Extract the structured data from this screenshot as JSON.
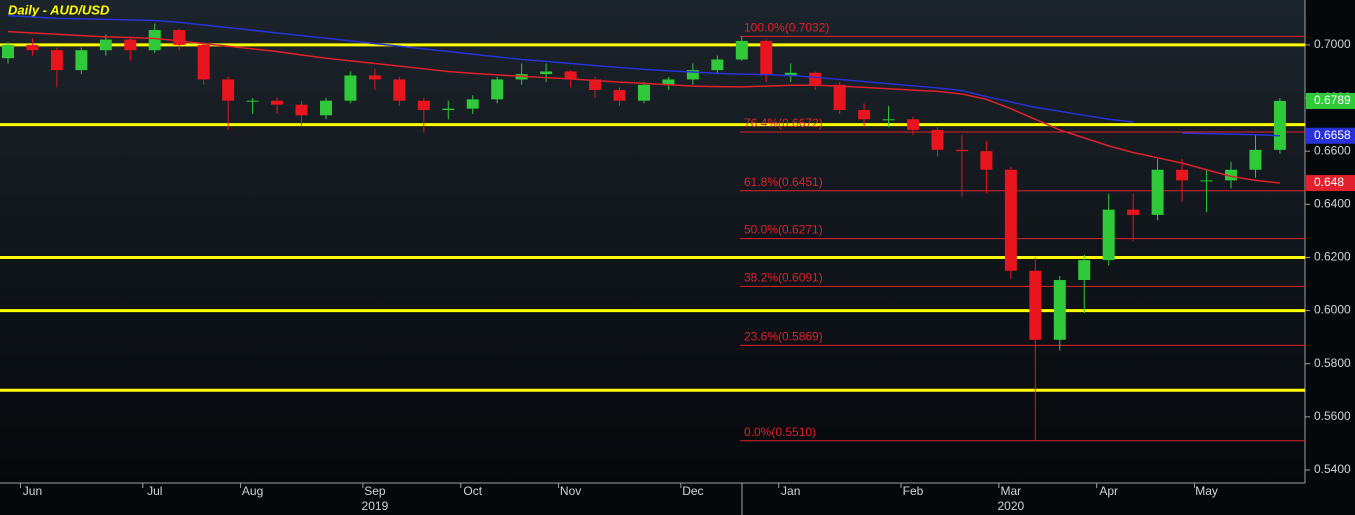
{
  "chart_data": {
    "type": "candlestick",
    "title": "Daily - AUD/USD",
    "categories": [
      null,
      "Jun",
      null,
      null,
      null,
      null,
      "Jul",
      null,
      null,
      null,
      "Aug",
      null,
      null,
      null,
      null,
      "Sep",
      null,
      null,
      null,
      "Oct",
      null,
      null,
      null,
      "Nov",
      null,
      null,
      null,
      null,
      "Dec",
      null,
      null,
      null,
      "Jan",
      null,
      null,
      null,
      null,
      "Feb",
      null,
      null,
      null,
      "Mar",
      null,
      null,
      null,
      "Apr",
      null,
      null,
      null,
      "May",
      null,
      null,
      null
    ],
    "years": [
      {
        "label": "2019",
        "category": 15
      },
      {
        "label": "2020",
        "category": 41
      }
    ],
    "open": [
      0.695,
      0.7,
      0.698,
      0.6905,
      0.698,
      0.702,
      0.698,
      0.7056,
      0.7,
      0.687,
      0.679,
      0.679,
      0.6775,
      0.6735,
      0.679,
      0.6885,
      0.687,
      0.679,
      0.6755,
      0.676,
      0.6795,
      0.687,
      0.689,
      0.69,
      0.687,
      0.683,
      0.679,
      0.685,
      0.687,
      0.6905,
      0.6945,
      0.7015,
      0.6885,
      0.6895,
      0.685,
      0.6755,
      0.672,
      0.672,
      0.668,
      0.6605,
      0.66,
      0.653,
      0.615,
      0.589,
      0.6115,
      0.619,
      0.638,
      0.636,
      0.653,
      0.649,
      0.649,
      0.653,
      0.6605
    ],
    "high": [
      0.701,
      0.7025,
      0.699,
      0.699,
      0.704,
      0.703,
      0.708,
      0.706,
      0.701,
      0.688,
      0.68,
      0.68,
      0.679,
      0.68,
      0.69,
      0.691,
      0.688,
      0.68,
      0.679,
      0.681,
      0.688,
      0.693,
      0.693,
      0.6905,
      0.688,
      0.684,
      0.686,
      0.688,
      0.693,
      0.696,
      0.7032,
      0.702,
      0.693,
      0.69,
      0.686,
      0.678,
      0.677,
      0.673,
      0.669,
      0.666,
      0.664,
      0.654,
      0.62,
      0.613,
      0.621,
      0.644,
      0.644,
      0.657,
      0.657,
      0.653,
      0.656,
      0.666,
      0.68
    ],
    "low": [
      0.693,
      0.696,
      0.684,
      0.689,
      0.696,
      0.694,
      0.697,
      0.698,
      0.685,
      0.668,
      0.674,
      0.674,
      0.669,
      0.672,
      0.678,
      0.683,
      0.677,
      0.667,
      0.672,
      0.674,
      0.678,
      0.685,
      0.686,
      0.684,
      0.68,
      0.677,
      0.678,
      0.683,
      0.685,
      0.689,
      0.694,
      0.686,
      0.686,
      0.683,
      0.674,
      0.669,
      0.669,
      0.666,
      0.658,
      0.643,
      0.644,
      0.612,
      0.551,
      0.585,
      0.599,
      0.617,
      0.626,
      0.634,
      0.641,
      0.637,
      0.646,
      0.65,
      0.659
    ],
    "close": [
      0.7,
      0.698,
      0.6905,
      0.698,
      0.702,
      0.698,
      0.7056,
      0.7,
      0.687,
      0.679,
      0.679,
      0.6775,
      0.6735,
      0.679,
      0.6885,
      0.687,
      0.679,
      0.6755,
      0.676,
      0.6795,
      0.687,
      0.689,
      0.69,
      0.687,
      0.683,
      0.679,
      0.685,
      0.687,
      0.6905,
      0.6945,
      0.7015,
      0.6885,
      0.6895,
      0.685,
      0.6755,
      0.672,
      0.672,
      0.668,
      0.6605,
      0.66,
      0.653,
      0.615,
      0.589,
      0.6115,
      0.619,
      0.638,
      0.636,
      0.653,
      0.649,
      0.649,
      0.653,
      0.6605,
      0.6789
    ],
    "up_color": "#2fc93a",
    "down_color": "#e8141e",
    "series": [
      {
        "color": "#e0202c",
        "values": [
          0.705,
          0.7045,
          0.704,
          0.7035,
          0.703,
          0.7028,
          0.7024,
          0.7015,
          0.7005,
          0.6995,
          0.6985,
          0.6975,
          0.6962,
          0.695,
          0.694,
          0.693,
          0.692,
          0.691,
          0.69,
          0.6893,
          0.6887,
          0.6882,
          0.6877,
          0.6872,
          0.6866,
          0.686,
          0.6855,
          0.685,
          0.6845,
          0.6843,
          0.6842,
          0.6845,
          0.6848,
          0.6848,
          0.6845,
          0.684,
          0.6835,
          0.683,
          0.6825,
          0.6815,
          0.6795,
          0.676,
          0.672,
          0.668,
          0.665,
          0.662,
          0.6595,
          0.6575,
          0.6555,
          0.653,
          0.6505,
          0.649,
          0.648
        ]
      },
      {
        "color": "#2832d8",
        "values": [
          0.711,
          0.7105,
          0.71,
          0.7098,
          0.7096,
          0.7094,
          0.7092,
          0.7085,
          0.7075,
          0.7065,
          0.7055,
          0.7045,
          0.7035,
          0.7025,
          0.7015,
          0.7005,
          0.6995,
          0.6985,
          0.6975,
          0.6965,
          0.6955,
          0.6945,
          0.6938,
          0.693,
          0.6922,
          0.6915,
          0.6908,
          0.6902,
          0.6898,
          0.6893,
          0.689,
          0.6888,
          0.6885,
          0.6878,
          0.687,
          0.6862,
          0.6854,
          0.6846,
          0.6838,
          0.6828,
          0.6805,
          0.6785,
          0.6765,
          0.675,
          0.6735,
          0.672,
          0.671,
          null,
          0.6668,
          0.6666,
          0.6664,
          0.6662,
          0.6658
        ]
      }
    ],
    "ylim": [
      0.5351,
      0.7169
    ],
    "yticks": [
      {
        "value": 0.54,
        "label": "0.5400"
      },
      {
        "value": 0.56,
        "label": "0.5600"
      },
      {
        "value": 0.58,
        "label": "0.5800"
      },
      {
        "value": 0.6,
        "label": "0.6000"
      },
      {
        "value": 0.62,
        "label": "0.6200"
      },
      {
        "value": 0.64,
        "label": "0.6400"
      },
      {
        "value": 0.66,
        "label": "0.6600"
      },
      {
        "value": 0.68,
        "label": "0.6800"
      },
      {
        "value": 0.7,
        "label": "0.7000"
      }
    ],
    "price_tags": [
      {
        "value": 0.6789,
        "color": "#2fc93a"
      },
      {
        "value": 0.6658,
        "color": "#2832d8"
      },
      {
        "value": 0.648,
        "color": "#e0202c"
      }
    ],
    "levels": [
      0.7,
      0.67,
      0.62,
      0.6,
      0.57
    ],
    "level_color": "#ffff00",
    "fibonacci": [
      {
        "value": 0.7032,
        "label": "100.0%(0.7032)"
      },
      {
        "value": 0.6672,
        "label": "76.4%(0.6672)"
      },
      {
        "value": 0.6451,
        "label": "61.8%(0.6451)"
      },
      {
        "value": 0.6271,
        "label": "50.0%(0.6271)"
      },
      {
        "value": 0.6091,
        "label": "38.2%(0.6091)"
      },
      {
        "value": 0.5869,
        "label": "23.6%(0.5869)"
      },
      {
        "value": 0.551,
        "label": "0.0%(0.5510)"
      }
    ],
    "fib_color": "#e0202c"
  }
}
